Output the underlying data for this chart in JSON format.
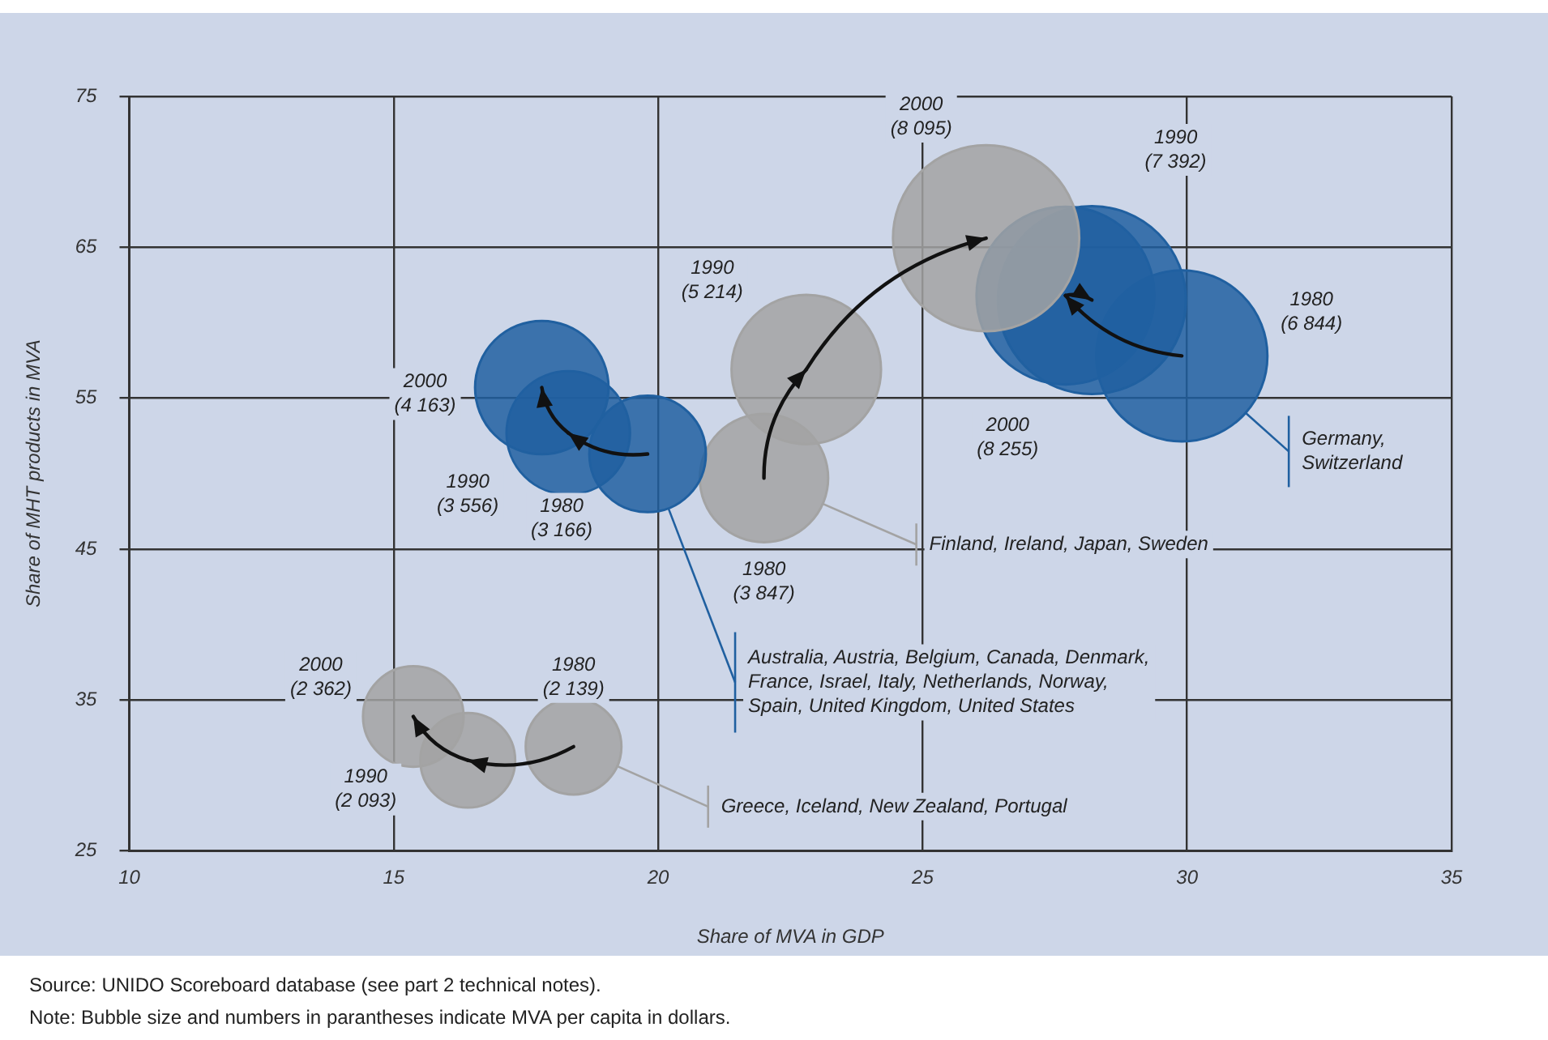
{
  "chart_data": {
    "type": "bubble",
    "xlabel": "Share of MVA in GDP",
    "ylabel": "Share of MHT products in MVA",
    "xlim": [
      10,
      35
    ],
    "xticks": [
      10,
      15,
      20,
      25,
      30,
      35
    ],
    "ylim": [
      25,
      75
    ],
    "yticks": [
      25,
      35,
      45,
      55,
      65,
      75
    ],
    "grid": true,
    "legend": "bottom right",
    "series": [
      {
        "name": "Greece, Iceland, New Zealand, Portugal",
        "color": "#a3a3a3",
        "x": [
          18.4,
          16.4,
          15.37
        ],
        "values": [
          31.9,
          31.0,
          33.9
        ],
        "sizes": [
          0.259,
          0.254,
          0.286
        ],
        "value_labels": [
          "1980\n(2 139)",
          "1990\n(2 093)",
          "2000\n(2 362)"
        ]
      },
      {
        "name": "Australia, Austria, Belgium, Canada, Denmark,\nFrance, Israel, Italy, Netherlands, Norway,\nSpain, United Kingdom, United States",
        "color": "#2060a0",
        "x": [
          19.8,
          18.3,
          17.8
        ],
        "values": [
          51.3,
          52.7,
          55.7
        ],
        "sizes": [
          0.384,
          0.431,
          0.504
        ],
        "value_labels": [
          "1980\n(3 166)",
          "1990\n(3 556)",
          "2000\n(4 163)"
        ]
      },
      {
        "name": "Finland, Ireland, Japan, Sweden",
        "color": "#a3a3a3",
        "x": [
          22.0,
          22.8,
          26.2
        ],
        "values": [
          49.7,
          56.9,
          65.6
        ],
        "sizes": [
          0.466,
          0.632,
          0.981
        ],
        "value_labels": [
          "1980\n(3 847)",
          "1990\n(5 214)",
          "2000\n(8 095)"
        ]
      },
      {
        "name": "Germany,\nSwitzerland",
        "color": "#2060a0",
        "x": [
          29.9,
          27.7,
          28.2
        ],
        "values": [
          57.8,
          61.8,
          61.5
        ],
        "sizes": [
          0.829,
          0.895,
          1
        ],
        "value_labels": [
          "1980\n(6 844)",
          "1990\n(7 392)",
          "2000\n(8 255)"
        ]
      }
    ],
    "annotations": [
      "Source:  UNIDO Scoreboard database (see part 2 technical notes).",
      "Note:  Bubble size and numbers in parantheses indicate MVA per capita in dollars."
    ]
  }
}
